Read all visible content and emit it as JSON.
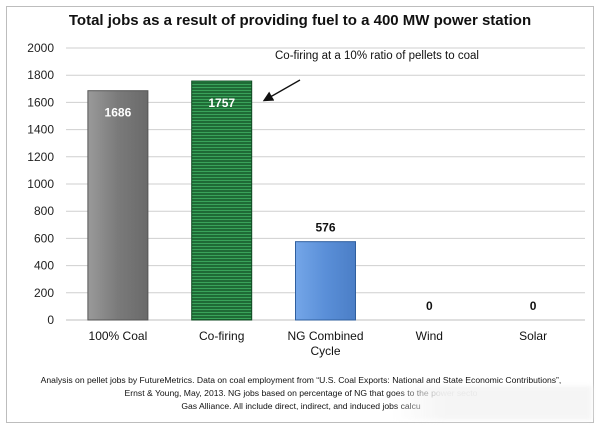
{
  "chart_data": {
    "type": "bar",
    "title": "Total jobs as a result of providing fuel to a 400 MW power station",
    "categories": [
      "100% Coal",
      "Co-firing",
      "NG Combined Cycle",
      "Wind",
      "Solar"
    ],
    "category_lines": [
      [
        "100% Coal"
      ],
      [
        "Co-firing"
      ],
      [
        "NG Combined",
        "Cycle"
      ],
      [
        "Wind"
      ],
      [
        "Solar"
      ]
    ],
    "values": [
      1686,
      1757,
      576,
      0,
      0
    ],
    "value_labels": [
      "1686",
      "1757",
      "576",
      "0",
      "0"
    ],
    "colors": [
      "#7f7f7f",
      "#1e6b35",
      "#5a8fd8",
      "#5a8fd8",
      "#5a8fd8"
    ],
    "ylim": [
      0,
      2000
    ],
    "yticks": [
      0,
      200,
      400,
      600,
      800,
      1000,
      1200,
      1400,
      1600,
      1800,
      2000
    ],
    "ytick_labels": [
      "0",
      "200",
      "400",
      "600",
      "800",
      "1000",
      "1200",
      "1400",
      "1600",
      "1800",
      "2000"
    ],
    "grid": true,
    "annotation": "Co-firing at a 10% ratio of pellets to coal"
  },
  "footnote": {
    "line1": "Analysis on pellet jobs by FutureMetrics. Data on coal employment from “U.S. Coal Exports: National and State Economic Contributions”,",
    "line2": "Ernst & Young, May, 2013.  NG jobs based on percentage of NG that goes to the power secto",
    "line3": "Gas Alliance. All include direct, indirect, and induced jobs calcu"
  }
}
